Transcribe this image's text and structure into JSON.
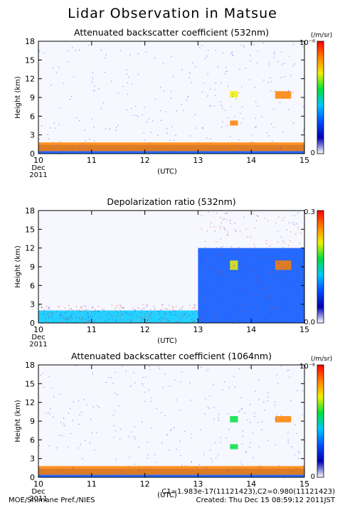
{
  "title": "Lidar Observation in Matsue",
  "x_axis": {
    "ticks": [
      10,
      11,
      12,
      13,
      14,
      15
    ],
    "start_label": {
      "month": "Dec",
      "year": "2011"
    },
    "label": "(UTC)"
  },
  "y_axis": {
    "label": "Height (km)",
    "ticks": [
      0,
      3,
      6,
      9,
      12,
      15,
      18
    ]
  },
  "colormap": [
    "#ffffff",
    "#0000b4",
    "#0050ff",
    "#00c8ff",
    "#00e040",
    "#f0f000",
    "#ff8000",
    "#ff0000"
  ],
  "chart_data": [
    {
      "type": "heatmap",
      "title": "Attenuated backscatter coefficient (532nm)",
      "xlabel": "(UTC)",
      "ylabel": "Height (km)",
      "xlim": [
        10,
        15
      ],
      "ylim": [
        0,
        18
      ],
      "colorbar": {
        "unit": "(/m/sr)",
        "min_label": "0",
        "max_label": "10⁻⁶"
      },
      "features": [
        {
          "x": [
            10.0,
            15.0
          ],
          "y": [
            0.0,
            1.4
          ],
          "level": 0.3
        },
        {
          "x": [
            10.0,
            15.0
          ],
          "y": [
            0.4,
            1.8
          ],
          "level": 0.85
        },
        {
          "x": [
            13.6,
            13.75
          ],
          "y": [
            9.0,
            10.0
          ],
          "level": 0.7
        },
        {
          "x": [
            13.6,
            13.75
          ],
          "y": [
            4.5,
            5.3
          ],
          "level": 0.8
        },
        {
          "x": [
            14.45,
            14.75
          ],
          "y": [
            8.8,
            10.0
          ],
          "level": 0.9
        }
      ]
    },
    {
      "type": "heatmap",
      "title": "Depolarization ratio (532nm)",
      "xlabel": "(UTC)",
      "ylabel": "Height (km)",
      "xlim": [
        10,
        15
      ],
      "ylim": [
        0,
        18
      ],
      "colorbar": {
        "unit": "",
        "min_label": "0.0",
        "max_label": "0.3"
      },
      "features": [
        {
          "x": [
            10.0,
            13.0
          ],
          "y": [
            0.0,
            2.0
          ],
          "level": 0.4
        },
        {
          "x": [
            13.0,
            15.0
          ],
          "y": [
            0.0,
            12.0
          ],
          "level": 0.3
        },
        {
          "x": [
            13.6,
            13.75
          ],
          "y": [
            8.5,
            10.0
          ],
          "level": 0.7
        },
        {
          "x": [
            14.45,
            14.75
          ],
          "y": [
            8.5,
            10.0
          ],
          "level": 0.85
        }
      ]
    },
    {
      "type": "heatmap",
      "title": "Attenuated backscatter coefficient (1064nm)",
      "xlabel": "(UTC)",
      "ylabel": "Height (km)",
      "xlim": [
        10,
        15
      ],
      "ylim": [
        0,
        18
      ],
      "colorbar": {
        "unit": "(/m/sr)",
        "min_label": "0",
        "max_label": "10⁻⁶"
      },
      "features": [
        {
          "x": [
            10.0,
            15.0
          ],
          "y": [
            0.0,
            1.4
          ],
          "level": 0.3
        },
        {
          "x": [
            10.0,
            15.0
          ],
          "y": [
            0.4,
            1.8
          ],
          "level": 0.85
        },
        {
          "x": [
            13.6,
            13.75
          ],
          "y": [
            8.8,
            9.8
          ],
          "level": 0.6
        },
        {
          "x": [
            13.6,
            13.75
          ],
          "y": [
            4.5,
            5.3
          ],
          "level": 0.6
        },
        {
          "x": [
            14.45,
            14.75
          ],
          "y": [
            8.8,
            9.8
          ],
          "level": 0.8
        }
      ]
    }
  ],
  "footer": {
    "source": "MOE/Shimane Pref./NIES",
    "calibration": "C1=1.983e-17(11121423),C2=0.980(11121423)",
    "created": "Created: Thu Dec 15 08:59:12 2011JST"
  }
}
